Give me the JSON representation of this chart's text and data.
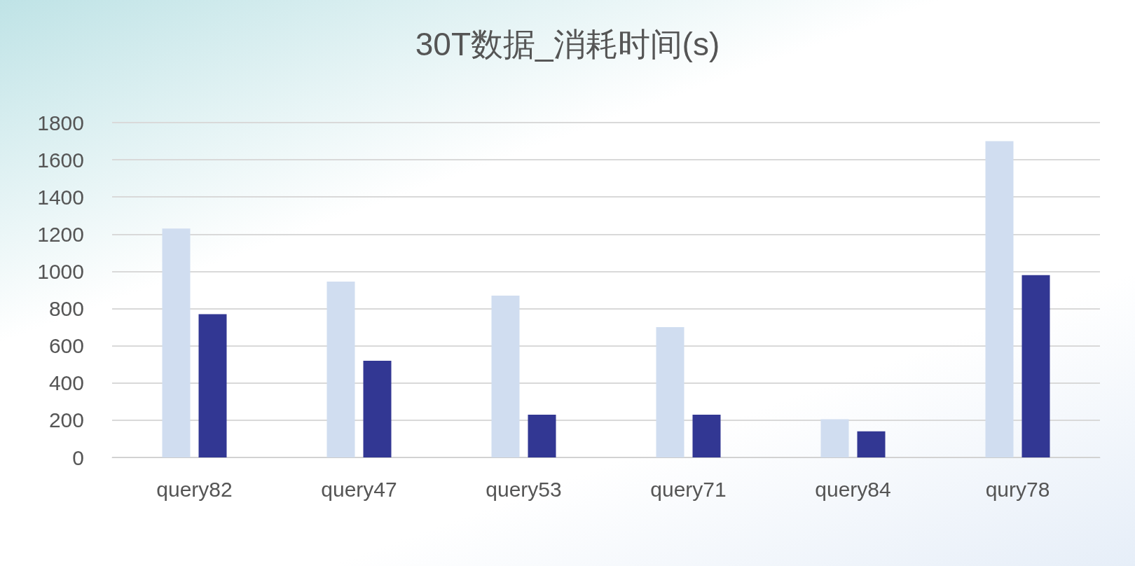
{
  "chart_data": {
    "type": "bar",
    "title": "30T数据_消耗时间(s)",
    "categories": [
      "query82",
      "query47",
      "query53",
      "query71",
      "query84",
      "qury78"
    ],
    "series": [
      {
        "color": "#d0ddf0",
        "values": [
          1230,
          945,
          870,
          700,
          205,
          1700
        ]
      },
      {
        "color": "#323793",
        "values": [
          770,
          520,
          230,
          230,
          140,
          980
        ]
      }
    ],
    "ylim": [
      0,
      1800
    ],
    "yticks": [
      0,
      200,
      400,
      600,
      800,
      1000,
      1200,
      1400,
      1600,
      1800
    ],
    "grid": "y"
  }
}
